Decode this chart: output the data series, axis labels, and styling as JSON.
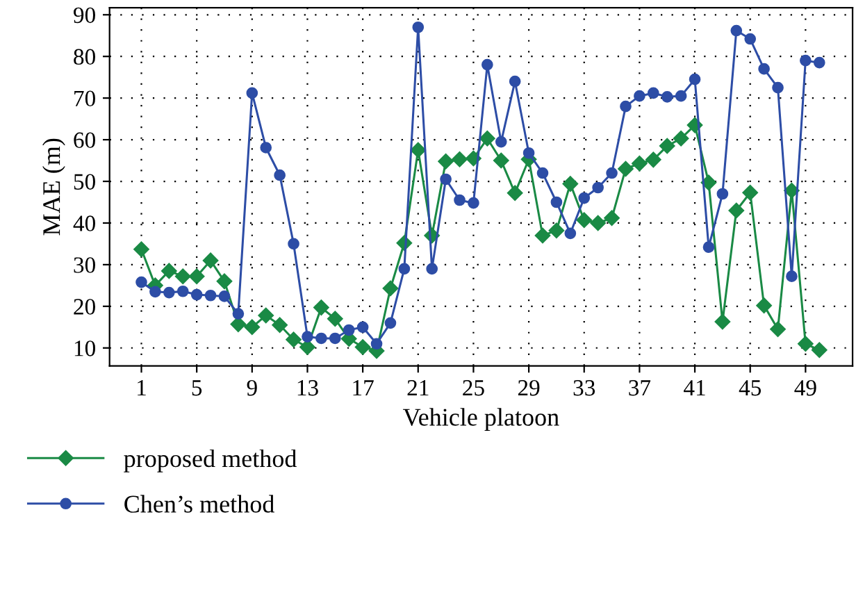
{
  "chart_data": {
    "type": "line",
    "xlabel": "Vehicle platoon",
    "ylabel": "MAE (m)",
    "x": [
      1,
      2,
      3,
      4,
      5,
      6,
      7,
      8,
      9,
      10,
      11,
      12,
      13,
      14,
      15,
      16,
      17,
      18,
      19,
      20,
      21,
      22,
      23,
      24,
      25,
      26,
      27,
      28,
      29,
      30,
      31,
      32,
      33,
      34,
      35,
      36,
      37,
      38,
      39,
      40,
      41,
      42,
      43,
      44,
      45,
      46,
      47,
      48,
      49,
      50
    ],
    "series": [
      {
        "name": "proposed method",
        "color": "#1a8a45",
        "marker": "diamond",
        "values": [
          33.7,
          25,
          28.5,
          27.2,
          27.2,
          31,
          26,
          15.7,
          15,
          17.8,
          15.5,
          12,
          10.2,
          19.7,
          17,
          12.2,
          10.2,
          9.3,
          24.3,
          35.2,
          57.5,
          37,
          54.8,
          55.3,
          55.5,
          60.3,
          55,
          47.2,
          55.3,
          37,
          38.2,
          49.4,
          40.7,
          40,
          41.2,
          53,
          54.3,
          55.2,
          58.5,
          60.3,
          63.5,
          49.7,
          16.3,
          43,
          47.3,
          20.2,
          14.5,
          47.8,
          11,
          9.5
        ]
      },
      {
        "name": "Chen’s method",
        "color": "#2d4da6",
        "marker": "circle",
        "values": [
          25.8,
          23.5,
          23.3,
          23.6,
          22.8,
          22.6,
          22.4,
          18.2,
          71.2,
          58.1,
          51.5,
          35,
          12.7,
          12.3,
          12.3,
          14.3,
          15,
          11,
          16,
          29,
          87,
          29,
          50.5,
          45.5,
          44.8,
          78,
          59.5,
          74,
          56.8,
          52,
          45,
          37.5,
          46,
          48.5,
          52,
          68,
          70.5,
          71.2,
          70.3,
          70.5,
          74.5,
          34.2,
          47,
          86.2,
          84.2,
          77,
          72.5,
          27.2,
          79,
          78.5
        ]
      }
    ],
    "xlim": [
      -1.3,
      52.4
    ],
    "ylim": [
      5.7,
      91.7
    ],
    "xticks": [
      1,
      5,
      9,
      13,
      17,
      21,
      25,
      29,
      33,
      37,
      41,
      45,
      49
    ],
    "yticks": [
      10,
      20,
      30,
      40,
      50,
      60,
      70,
      80,
      90
    ],
    "grid": true,
    "legend": "bottom left"
  }
}
